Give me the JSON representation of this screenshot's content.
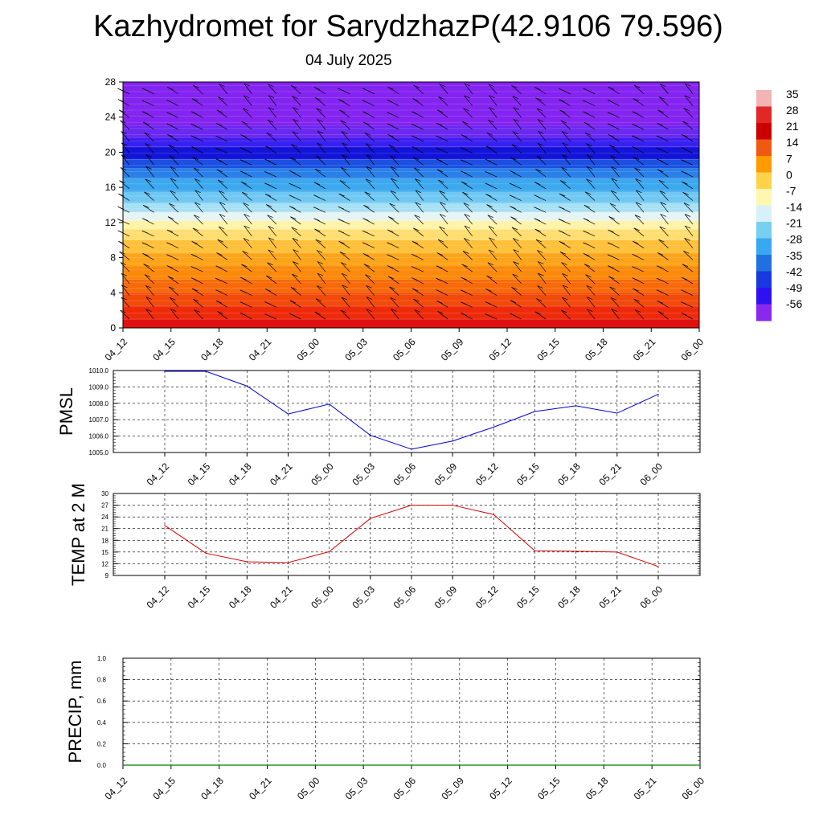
{
  "page": {
    "title": "Kazhydromet for SarydzhazP(42.9106 79.596)",
    "subtitle": "04 July 2025"
  },
  "chart_data": [
    {
      "type": "heatmap",
      "name": "cross-section",
      "title": "",
      "xlabel": "",
      "ylabel": "",
      "x_ticks": [
        "04_12",
        "04_15",
        "04_18",
        "04_21",
        "05_00",
        "05_03",
        "05_06",
        "05_09",
        "05_12",
        "05_15",
        "05_18",
        "05_21",
        "06_00"
      ],
      "y_ticks": [
        0,
        4,
        8,
        12,
        16,
        20,
        24,
        28
      ],
      "ylim": [
        0,
        28
      ],
      "colorbar_labels": [
        "35",
        "28",
        "21",
        "14",
        "7",
        "0",
        "-7",
        "-14",
        "-21",
        "-28",
        "-35",
        "-42",
        "-49",
        "-56"
      ],
      "colorbar_colors": [
        "#f4b4b4",
        "#e02828",
        "#cc0000",
        "#f05a10",
        "#ff9a00",
        "#ffd24a",
        "#fff7b0",
        "#d8f0f8",
        "#78d0f0",
        "#38a8f0",
        "#2070e0",
        "#1838e0",
        "#3010f0",
        "#8a28f0"
      ],
      "bands": [
        {
          "from": 0,
          "to": 1,
          "color": "#e01010"
        },
        {
          "from": 1,
          "to": 2.5,
          "color": "#ee2a0a"
        },
        {
          "from": 2.5,
          "to": 4,
          "color": "#f24a0a"
        },
        {
          "from": 4,
          "to": 5.5,
          "color": "#f76a0a"
        },
        {
          "from": 5.5,
          "to": 7,
          "color": "#fb8a0c"
        },
        {
          "from": 7,
          "to": 8.5,
          "color": "#fda41a"
        },
        {
          "from": 8.5,
          "to": 10,
          "color": "#ffc03a"
        },
        {
          "from": 10,
          "to": 11.2,
          "color": "#ffdd70"
        },
        {
          "from": 11.2,
          "to": 12.2,
          "color": "#fff3a8"
        },
        {
          "from": 12.2,
          "to": 13.2,
          "color": "#e6f4f4"
        },
        {
          "from": 13.2,
          "to": 14.2,
          "color": "#a8e0f4"
        },
        {
          "from": 14.2,
          "to": 15.5,
          "color": "#70c8f2"
        },
        {
          "from": 15.5,
          "to": 17,
          "color": "#3ca8ee"
        },
        {
          "from": 17,
          "to": 18.2,
          "color": "#2a80e8"
        },
        {
          "from": 18.2,
          "to": 19.2,
          "color": "#1c50e0"
        },
        {
          "from": 19.2,
          "to": 20.6,
          "color": "#1414d8"
        },
        {
          "from": 20.6,
          "to": 21.6,
          "color": "#3a20f0"
        },
        {
          "from": 21.6,
          "to": 23,
          "color": "#6a28f0"
        },
        {
          "from": 23,
          "to": 28,
          "color": "#8424f0"
        }
      ]
    },
    {
      "type": "line",
      "name": "pmsl",
      "title": "",
      "xlabel": "",
      "ylabel": "PMSL",
      "categories": [
        "04_12",
        "04_15",
        "04_18",
        "04_21",
        "05_00",
        "05_03",
        "05_06",
        "05_09",
        "05_12",
        "05_15",
        "05_18",
        "05_21",
        "06_00"
      ],
      "y_ticks": [
        "1005.0",
        "1006.0",
        "1007.0",
        "1008.0",
        "1009.0",
        "1010.0"
      ],
      "ylim": [
        1005,
        1010
      ],
      "color": "#0000dd",
      "series": [
        {
          "values": [
            1009.95,
            1009.95,
            1009.05,
            1007.35,
            1007.95,
            1006.05,
            1005.2,
            1005.7,
            1006.55,
            1007.5,
            1007.85,
            1007.4,
            1008.55
          ]
        }
      ]
    },
    {
      "type": "line",
      "name": "temp",
      "title": "",
      "xlabel": "",
      "ylabel": "TEMP at 2 M",
      "categories": [
        "04_12",
        "04_15",
        "04_18",
        "04_21",
        "05_00",
        "05_03",
        "05_06",
        "05_09",
        "05_12",
        "05_15",
        "05_18",
        "05_21",
        "06_00"
      ],
      "y_ticks": [
        "9",
        "12",
        "15",
        "18",
        "21",
        "24",
        "27",
        "30"
      ],
      "ylim": [
        9,
        30
      ],
      "color": "#dd0000",
      "series": [
        {
          "values": [
            21.8,
            14.7,
            12.5,
            12.3,
            15.1,
            23.6,
            27.0,
            27.0,
            24.6,
            15.3,
            15.2,
            15.0,
            11.3
          ]
        }
      ]
    },
    {
      "type": "line",
      "name": "precip",
      "title": "",
      "xlabel": "",
      "ylabel": "PRECIP, mm",
      "categories": [
        "04_12",
        "04_15",
        "04_18",
        "04_21",
        "05_00",
        "05_03",
        "05_06",
        "05_09",
        "05_12",
        "05_15",
        "05_18",
        "05_21",
        "06_00"
      ],
      "y_ticks": [
        "0.0",
        "0.2",
        "0.4",
        "0.6",
        "0.8",
        "1.0"
      ],
      "ylim": [
        0,
        1
      ],
      "color": "#008000",
      "series": [
        {
          "values": [
            0,
            0,
            0,
            0,
            0,
            0,
            0,
            0,
            0,
            0,
            0,
            0,
            0
          ]
        }
      ]
    }
  ]
}
